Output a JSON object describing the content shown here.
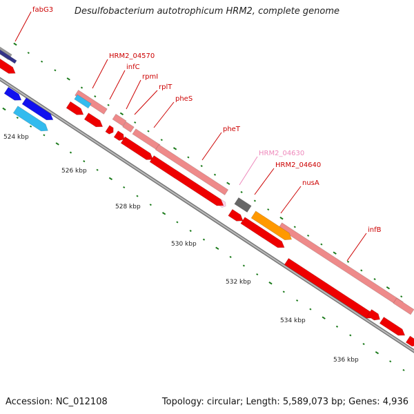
{
  "title": "Desulfobacterium autotrophicum HRM2, complete genome",
  "accession": "Accession: NC_012108",
  "topology": "Topology: circular; Length: 5,589,073 bp; Genes: 4,936",
  "colors": {
    "backbone": "#888888",
    "tick": "#1a7a1a",
    "label_red": "#cc0000",
    "label_pink": "#ee88bb",
    "cds_red": "#ee0000",
    "cds_pink": "#ee8a8a",
    "cds_blue": "#1111ee",
    "cds_cyan": "#33bbee",
    "cds_orange": "#ff9900",
    "cds_gray": "#666666",
    "cds_navy": "#333388"
  },
  "kbp_labels": [
    "524 kbp",
    "526 kbp",
    "528 kbp",
    "530 kbp",
    "532 kbp",
    "534 kbp",
    "536 kbp"
  ],
  "gene_labels": [
    {
      "text": "fabG3",
      "color": "label_red"
    },
    {
      "text": "HRM2_04570",
      "color": "label_red"
    },
    {
      "text": "infC",
      "color": "label_red"
    },
    {
      "text": "rpmI",
      "color": "label_red"
    },
    {
      "text": "rplT",
      "color": "label_red"
    },
    {
      "text": "pheS",
      "color": "label_red"
    },
    {
      "text": "pheT",
      "color": "label_red"
    },
    {
      "text": "HRM2_04630",
      "color": "label_pink"
    },
    {
      "text": "HRM2_04640",
      "color": "label_red"
    },
    {
      "text": "nusA",
      "color": "label_red"
    },
    {
      "text": "infB",
      "color": "label_red"
    }
  ]
}
